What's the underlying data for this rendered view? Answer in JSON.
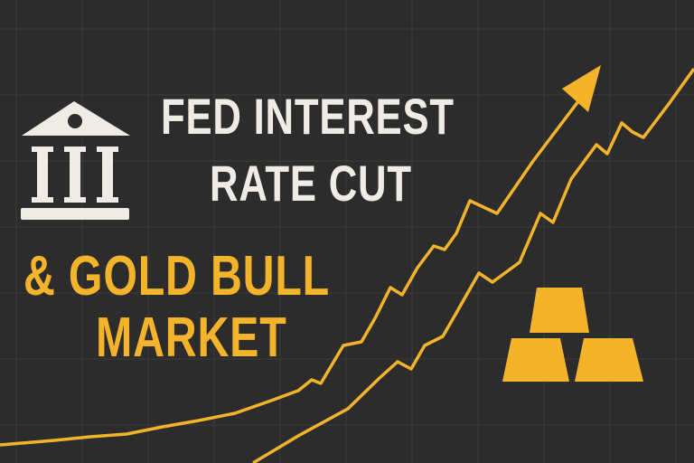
{
  "headline": {
    "line1": "FED INTEREST",
    "line2": "RATE CUT",
    "line3": "& GOLD BULL",
    "line4": "MARKET"
  },
  "icons": [
    "bank-building-icon",
    "up-trend-arrow-icon",
    "gold-bars-icon"
  ],
  "colors": {
    "background": "#2c2c2c",
    "gold": "#f3b42c",
    "white": "#efece6",
    "grid": "#3a3a3a"
  }
}
